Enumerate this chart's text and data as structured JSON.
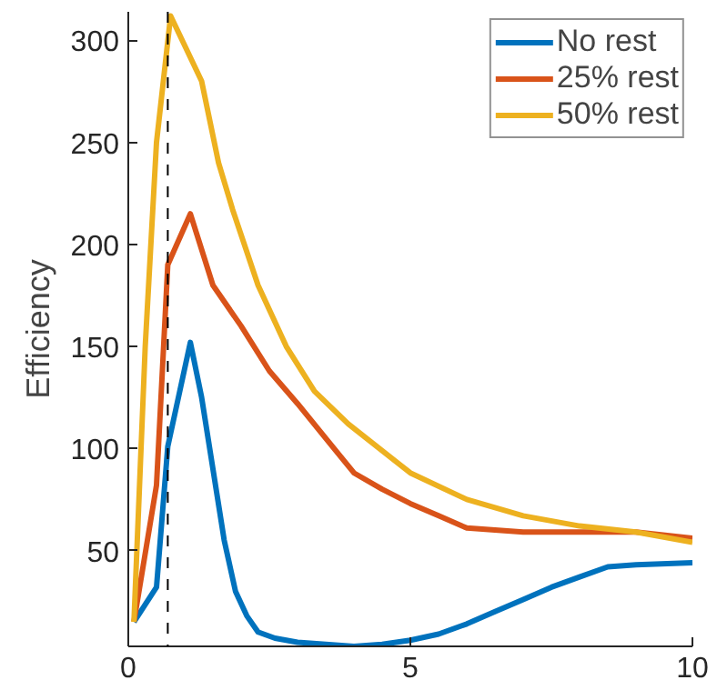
{
  "chart_data": {
    "type": "line",
    "ylabel": "Efficiency",
    "xlim": [
      0,
      10
    ],
    "ylim": [
      3,
      314
    ],
    "xticks": [
      0,
      5,
      10
    ],
    "yticks": [
      50,
      100,
      150,
      200,
      250,
      300
    ],
    "legend": "top right",
    "grid": false,
    "line_style": "solid",
    "marker": "none",
    "ref_lines": [
      {
        "axis": "x",
        "value": 0.7,
        "color": "#000000",
        "line_style": "dashed"
      }
    ],
    "series": [
      {
        "name": "No rest",
        "color": "#0072bd",
        "x": [
          0.1,
          0.5,
          0.7,
          1.1,
          1.3,
          1.5,
          1.7,
          1.9,
          2.1,
          2.3,
          2.6,
          3,
          3.5,
          4,
          4.5,
          5,
          5.5,
          6,
          6.5,
          7,
          7.5,
          8,
          8.5,
          9,
          10
        ],
        "values": [
          15,
          32,
          101,
          152,
          125,
          90,
          55,
          30,
          18,
          10,
          7,
          5,
          4,
          3,
          4,
          6,
          9,
          14,
          20,
          26,
          32,
          37,
          42,
          43,
          44
        ]
      },
      {
        "name": "25% rest",
        "color": "#d95319",
        "x": [
          0.1,
          0.5,
          0.7,
          1.1,
          1.5,
          2,
          2.5,
          3,
          3.5,
          4,
          4.5,
          5,
          5.5,
          6,
          6.5,
          7,
          8,
          9,
          10
        ],
        "values": [
          15,
          82,
          190,
          215,
          180,
          160,
          138,
          122,
          105,
          88,
          80,
          73,
          67,
          61,
          60,
          59,
          59,
          59,
          56
        ]
      },
      {
        "name": "50% rest",
        "color": "#edb120",
        "x": [
          0.1,
          0.3,
          0.5,
          0.75,
          1.3,
          1.6,
          1.85,
          2.3,
          2.8,
          3.3,
          3.9,
          5,
          6,
          7,
          8,
          9,
          10
        ],
        "values": [
          15,
          150,
          250,
          312,
          280,
          240,
          217,
          180,
          150,
          128,
          112,
          88,
          75,
          67,
          62,
          59,
          54
        ]
      }
    ]
  }
}
